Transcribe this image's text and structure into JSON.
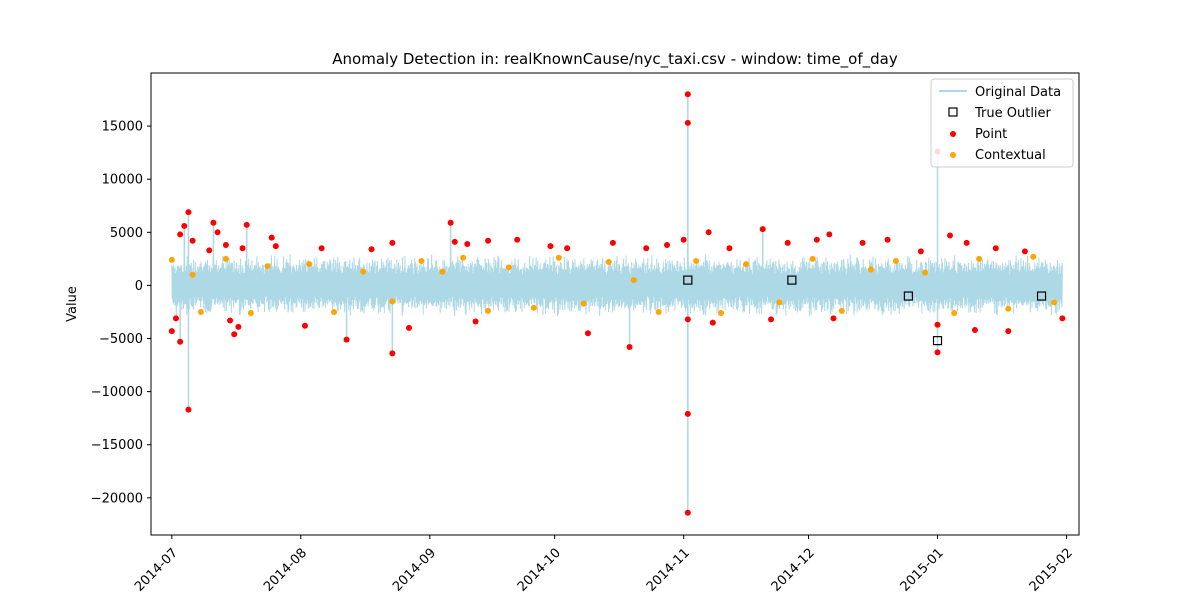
{
  "chart_data": {
    "type": "line",
    "title": "Anomaly Detection in: realKnownCause/nyc_taxi.csv - window: time_of_day",
    "xlabel": "",
    "ylabel": "Value",
    "x_tick_labels": [
      "2014-07",
      "2014-08",
      "2014-09",
      "2014-10",
      "2014-11",
      "2014-12",
      "2015-01",
      "2015-02"
    ],
    "x_ticks": [
      "2014-07-01",
      "2014-08-01",
      "2014-09-01",
      "2014-10-01",
      "2014-11-01",
      "2014-12-01",
      "2015-01-01",
      "2015-02-01"
    ],
    "xlim": [
      "2014-06-26",
      "2015-02-04"
    ],
    "data_range": [
      "2014-07-01",
      "2015-01-31"
    ],
    "y_ticks": [
      15000,
      10000,
      5000,
      0,
      -5000,
      -10000,
      -15000,
      -20000
    ],
    "y_tick_labels": [
      "15000",
      "10000",
      "5000",
      "0",
      "−5000",
      "−10000",
      "−15000",
      "−20000"
    ],
    "ylim": [
      -23500,
      20000
    ],
    "grid": false,
    "legend_position": "top-right",
    "series": [
      {
        "name": "Original Data",
        "style": "line",
        "color": "#add8e6",
        "typical_band": [
          -3000,
          3000
        ]
      },
      {
        "name": "True Outlier",
        "style": "square",
        "color": "#000000",
        "points": [
          [
            "2014-11-02",
            500
          ],
          [
            "2014-11-27",
            500
          ],
          [
            "2014-12-25",
            -1000
          ],
          [
            "2015-01-01",
            -5200
          ],
          [
            "2015-01-26",
            -1000
          ]
        ]
      },
      {
        "name": "Point",
        "style": "dot",
        "color": "#ff0000",
        "points": [
          [
            "2014-07-01",
            -4300
          ],
          [
            "2014-07-02",
            -3100
          ],
          [
            "2014-07-03",
            4800
          ],
          [
            "2014-07-03",
            -5300
          ],
          [
            "2014-07-04",
            5600
          ],
          [
            "2014-07-05",
            6900
          ],
          [
            "2014-07-05",
            -11700
          ],
          [
            "2014-07-06",
            4200
          ],
          [
            "2014-07-10",
            3300
          ],
          [
            "2014-07-11",
            5900
          ],
          [
            "2014-07-12",
            5000
          ],
          [
            "2014-07-14",
            3800
          ],
          [
            "2014-07-15",
            -3300
          ],
          [
            "2014-07-16",
            -4600
          ],
          [
            "2014-07-17",
            -3900
          ],
          [
            "2014-07-18",
            3500
          ],
          [
            "2014-07-19",
            5700
          ],
          [
            "2014-07-25",
            4500
          ],
          [
            "2014-07-26",
            3700
          ],
          [
            "2014-08-02",
            -3800
          ],
          [
            "2014-08-06",
            3500
          ],
          [
            "2014-08-12",
            -5100
          ],
          [
            "2014-08-18",
            3400
          ],
          [
            "2014-08-23",
            4000
          ],
          [
            "2014-08-23",
            -6400
          ],
          [
            "2014-08-27",
            -4000
          ],
          [
            "2014-09-06",
            5900
          ],
          [
            "2014-09-07",
            4100
          ],
          [
            "2014-09-10",
            3900
          ],
          [
            "2014-09-12",
            -3400
          ],
          [
            "2014-09-15",
            4200
          ],
          [
            "2014-09-22",
            4300
          ],
          [
            "2014-09-30",
            3700
          ],
          [
            "2014-10-04",
            3500
          ],
          [
            "2014-10-09",
            -4500
          ],
          [
            "2014-10-15",
            4000
          ],
          [
            "2014-10-19",
            -5800
          ],
          [
            "2014-10-23",
            3500
          ],
          [
            "2014-10-28",
            3800
          ],
          [
            "2014-11-01",
            4300
          ],
          [
            "2014-11-02",
            18000
          ],
          [
            "2014-11-02",
            15300
          ],
          [
            "2014-11-02",
            -12100
          ],
          [
            "2014-11-02",
            -21400
          ],
          [
            "2014-11-02",
            -3200
          ],
          [
            "2014-11-07",
            5000
          ],
          [
            "2014-11-08",
            -3500
          ],
          [
            "2014-11-12",
            3500
          ],
          [
            "2014-11-20",
            5300
          ],
          [
            "2014-11-22",
            -3200
          ],
          [
            "2014-11-26",
            4000
          ],
          [
            "2014-12-03",
            4300
          ],
          [
            "2014-12-06",
            4800
          ],
          [
            "2014-12-07",
            -3100
          ],
          [
            "2014-12-14",
            4000
          ],
          [
            "2014-12-20",
            4300
          ],
          [
            "2014-12-28",
            3200
          ],
          [
            "2015-01-01",
            12600
          ],
          [
            "2015-01-01",
            -3700
          ],
          [
            "2015-01-01",
            -6300
          ],
          [
            "2015-01-04",
            4700
          ],
          [
            "2015-01-08",
            4000
          ],
          [
            "2015-01-10",
            -4200
          ],
          [
            "2015-01-15",
            3500
          ],
          [
            "2015-01-18",
            -4300
          ],
          [
            "2015-01-22",
            3200
          ],
          [
            "2015-01-31",
            -3100
          ]
        ]
      },
      {
        "name": "Contextual",
        "style": "dot",
        "color": "#ffa500",
        "points": [
          [
            "2014-07-01",
            2400
          ],
          [
            "2014-07-06",
            1000
          ],
          [
            "2014-07-08",
            -2500
          ],
          [
            "2014-07-14",
            2500
          ],
          [
            "2014-07-20",
            -2600
          ],
          [
            "2014-07-24",
            1800
          ],
          [
            "2014-08-03",
            2000
          ],
          [
            "2014-08-09",
            -2500
          ],
          [
            "2014-08-16",
            1300
          ],
          [
            "2014-08-23",
            -1500
          ],
          [
            "2014-08-30",
            2300
          ],
          [
            "2014-09-04",
            1300
          ],
          [
            "2014-09-09",
            2600
          ],
          [
            "2014-09-15",
            -2400
          ],
          [
            "2014-09-20",
            1700
          ],
          [
            "2014-09-26",
            -2100
          ],
          [
            "2014-10-02",
            2600
          ],
          [
            "2014-10-08",
            -1700
          ],
          [
            "2014-10-14",
            2200
          ],
          [
            "2014-10-20",
            500
          ],
          [
            "2014-10-26",
            -2500
          ],
          [
            "2014-11-04",
            2300
          ],
          [
            "2014-11-10",
            -2600
          ],
          [
            "2014-11-16",
            2000
          ],
          [
            "2014-11-24",
            -1600
          ],
          [
            "2014-12-02",
            2500
          ],
          [
            "2014-12-09",
            -2400
          ],
          [
            "2014-12-16",
            1500
          ],
          [
            "2014-12-22",
            2300
          ],
          [
            "2014-12-29",
            1200
          ],
          [
            "2015-01-05",
            -2600
          ],
          [
            "2015-01-11",
            2500
          ],
          [
            "2015-01-18",
            -2200
          ],
          [
            "2015-01-24",
            2700
          ],
          [
            "2015-01-29",
            -1600
          ]
        ]
      }
    ]
  }
}
